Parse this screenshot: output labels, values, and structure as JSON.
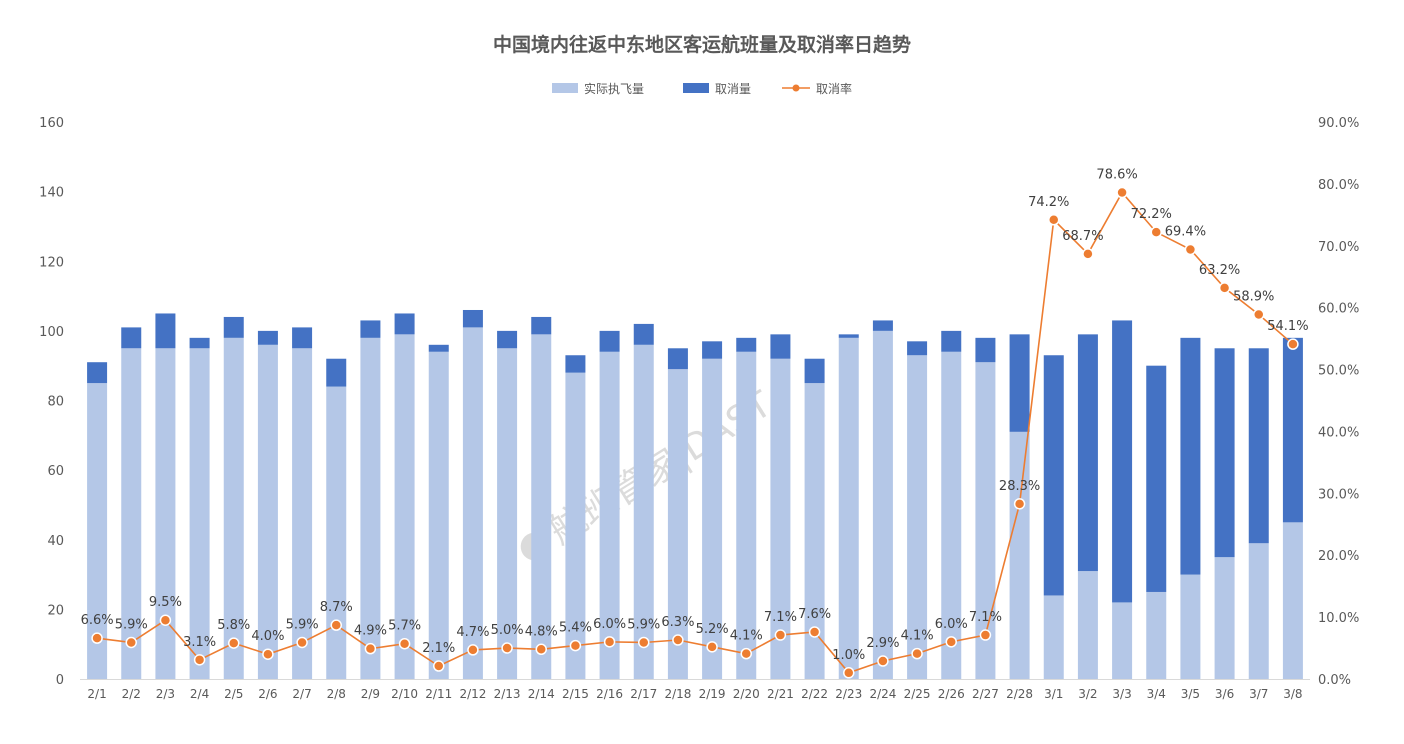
{
  "chart_data": {
    "type": "bar",
    "stacked": true,
    "title": "中国境内往返中东地区客运航班量及取消率日趋势",
    "legend_position": "top",
    "watermark": "航班管家|DAST",
    "categories": [
      "2/1",
      "2/2",
      "2/3",
      "2/4",
      "2/5",
      "2/6",
      "2/7",
      "2/8",
      "2/9",
      "2/10",
      "2/11",
      "2/12",
      "2/13",
      "2/14",
      "2/15",
      "2/16",
      "2/17",
      "2/18",
      "2/19",
      "2/20",
      "2/21",
      "2/22",
      "2/23",
      "2/24",
      "2/25",
      "2/26",
      "2/27",
      "2/28",
      "3/1",
      "3/2",
      "3/3",
      "3/4",
      "3/5",
      "3/6",
      "3/7",
      "3/8"
    ],
    "series": [
      {
        "name": "实际执飞量",
        "type": "bar",
        "axis": "left",
        "color": "#B4C7E7",
        "values": [
          85,
          95,
          95,
          95,
          98,
          96,
          95,
          84,
          98,
          99,
          94,
          101,
          95,
          99,
          88,
          94,
          96,
          89,
          92,
          94,
          92,
          85,
          98,
          100,
          93,
          94,
          91,
          71,
          24,
          31,
          22,
          25,
          30,
          35,
          39,
          45
        ]
      },
      {
        "name": "取消量",
        "type": "bar",
        "axis": "left",
        "color": "#4472C4",
        "values": [
          6,
          6,
          10,
          3,
          6,
          4,
          6,
          8,
          5,
          6,
          2,
          5,
          5,
          5,
          5,
          6,
          6,
          6,
          5,
          4,
          7,
          7,
          1,
          3,
          4,
          6,
          7,
          28,
          69,
          68,
          81,
          65,
          68,
          60,
          56,
          53
        ]
      },
      {
        "name": "取消率",
        "type": "line",
        "axis": "right",
        "color": "#ED7D31",
        "values": [
          6.6,
          5.9,
          9.5,
          3.1,
          5.8,
          4.0,
          5.9,
          8.7,
          4.9,
          5.7,
          2.1,
          4.7,
          5.0,
          4.8,
          5.4,
          6.0,
          5.9,
          6.3,
          5.2,
          4.1,
          7.1,
          7.6,
          1.0,
          2.9,
          4.1,
          6.0,
          7.1,
          28.3,
          74.2,
          68.7,
          78.6,
          72.2,
          69.4,
          63.2,
          58.9,
          54.1
        ],
        "labels": [
          "6.6%",
          "5.9%",
          "9.5%",
          "3.1%",
          "5.8%",
          "4.0%",
          "5.9%",
          "8.7%",
          "4.9%",
          "5.7%",
          "2.1%",
          "4.7%",
          "5.0%",
          "4.8%",
          "5.4%",
          "6.0%",
          "5.9%",
          "6.3%",
          "5.2%",
          "4.1%",
          "7.1%",
          "7.6%",
          "1.0%",
          "2.9%",
          "4.1%",
          "6.0%",
          "7.1%",
          "28.3%",
          "74.2%",
          "68.7%",
          "78.6%",
          "72.2%",
          "69.4%",
          "63.2%",
          "58.9%",
          "54.1%"
        ]
      }
    ],
    "y_left": {
      "range": [
        0,
        160
      ],
      "ticks": [
        "0",
        "20",
        "40",
        "60",
        "80",
        "100",
        "120",
        "140",
        "160"
      ]
    },
    "y_right": {
      "range": [
        0,
        90
      ],
      "ticks": [
        "0.0%",
        "10.0%",
        "20.0%",
        "30.0%",
        "40.0%",
        "50.0%",
        "60.0%",
        "70.0%",
        "80.0%",
        "90.0%"
      ]
    },
    "grid": false
  }
}
